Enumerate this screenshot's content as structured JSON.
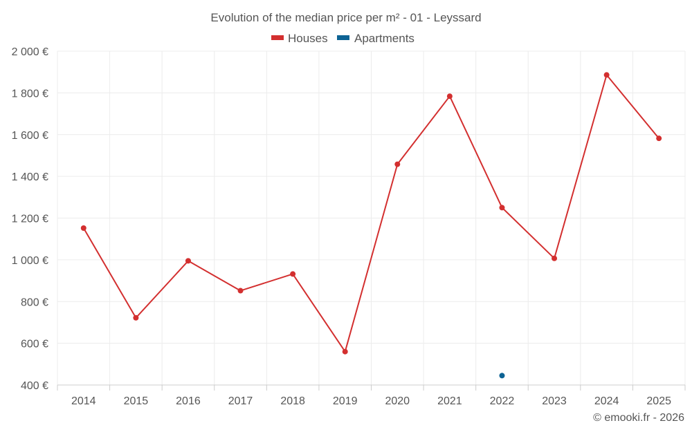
{
  "chart_data": {
    "type": "line",
    "title": "Evolution of the median price per m² - 01 - Leyssard",
    "categories": [
      "2014",
      "2015",
      "2016",
      "2017",
      "2018",
      "2019",
      "2020",
      "2021",
      "2022",
      "2023",
      "2024",
      "2025"
    ],
    "series": [
      {
        "name": "Houses",
        "color": "#d32f2f",
        "values": [
          1152,
          722,
          995,
          852,
          932,
          560,
          1458,
          1784,
          1250,
          1007,
          1886,
          1582
        ]
      },
      {
        "name": "Apartments",
        "color": "#0d6394",
        "values": [
          null,
          null,
          null,
          null,
          null,
          null,
          null,
          null,
          445,
          null,
          null,
          null
        ]
      }
    ],
    "ylim": [
      400,
      2000
    ],
    "yticks": [
      400,
      600,
      800,
      1000,
      1200,
      1400,
      1600,
      1800,
      2000
    ],
    "ytick_labels": [
      "400 €",
      "600 €",
      "800 €",
      "1 000 €",
      "1 200 €",
      "1 400 €",
      "1 600 €",
      "1 800 €",
      "2 000 €"
    ],
    "grid": true,
    "legend": "top-center",
    "xlabel": "",
    "ylabel": ""
  },
  "credit": "© emooki.fr - 2026"
}
